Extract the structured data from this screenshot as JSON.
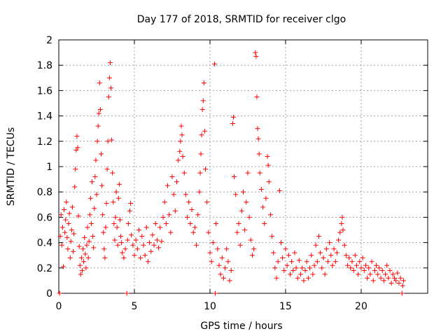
{
  "chart_data": {
    "type": "scatter",
    "title": "Day 177 of 2018, SRMTID for receiver clgo",
    "xlabel": "GPS time / hours",
    "ylabel": "SRMTID / TECUs",
    "xlim": [
      0,
      24.4
    ],
    "ylim": [
      0,
      2
    ],
    "x_ticks": [
      0,
      5,
      10,
      15,
      20
    ],
    "x_tick_labels": [
      "0",
      "5",
      "10",
      "15",
      "20"
    ],
    "y_ticks": [
      0,
      0.2,
      0.4,
      0.6,
      0.8,
      1,
      1.2,
      1.4,
      1.6,
      1.8,
      2
    ],
    "y_tick_labels": [
      "0",
      "0.2",
      "0.4",
      "0.6",
      "0.8",
      "1",
      "1.2",
      "1.4",
      "1.6",
      "1.8",
      "2"
    ],
    "grid": true,
    "marker": "+",
    "marker_color": "#ff0000",
    "series": [
      {
        "name": "SRMTID",
        "points": [
          [
            0.05,
            0.0
          ],
          [
            0.1,
            0.45
          ],
          [
            0.15,
            0.62
          ],
          [
            0.2,
            0.38
          ],
          [
            0.25,
            0.52
          ],
          [
            0.3,
            0.21
          ],
          [
            0.35,
            0.66
          ],
          [
            0.4,
            0.48
          ],
          [
            0.45,
            0.58
          ],
          [
            0.5,
            0.72
          ],
          [
            0.55,
            0.44
          ],
          [
            0.6,
            0.35
          ],
          [
            0.65,
            0.55
          ],
          [
            0.7,
            0.63
          ],
          [
            0.75,
            0.28
          ],
          [
            0.8,
            0.41
          ],
          [
            0.85,
            0.5
          ],
          [
            0.9,
            0.68
          ],
          [
            0.95,
            0.33
          ],
          [
            1.0,
            0.47
          ],
          [
            1.05,
            0.84
          ],
          [
            1.1,
            0.98
          ],
          [
            1.15,
            1.13
          ],
          [
            1.2,
            1.24
          ],
          [
            1.25,
            1.15
          ],
          [
            1.3,
            0.61
          ],
          [
            1.35,
            0.37
          ],
          [
            1.4,
            0.22
          ],
          [
            1.45,
            0.15
          ],
          [
            1.5,
            0.28
          ],
          [
            1.55,
            0.18
          ],
          [
            1.6,
            0.35
          ],
          [
            1.65,
            0.25
          ],
          [
            1.7,
            0.44
          ],
          [
            1.75,
            0.31
          ],
          [
            1.8,
            0.2
          ],
          [
            1.85,
            0.38
          ],
          [
            1.9,
            0.52
          ],
          [
            1.95,
            0.28
          ],
          [
            2.0,
            0.41
          ],
          [
            2.05,
            0.62
          ],
          [
            2.1,
            0.75
          ],
          [
            2.15,
            0.55
          ],
          [
            2.2,
            0.88
          ],
          [
            2.25,
            0.45
          ],
          [
            2.3,
            0.36
          ],
          [
            2.35,
            0.67
          ],
          [
            2.4,
            0.92
          ],
          [
            2.45,
            1.05
          ],
          [
            2.5,
            0.78
          ],
          [
            2.55,
            1.2
          ],
          [
            2.6,
            1.32
          ],
          [
            2.65,
            1.42
          ],
          [
            2.7,
            1.66
          ],
          [
            2.75,
            1.45
          ],
          [
            2.8,
            1.1
          ],
          [
            2.85,
            0.85
          ],
          [
            2.9,
            0.62
          ],
          [
            2.95,
            0.48
          ],
          [
            3.0,
            0.35
          ],
          [
            3.05,
            0.28
          ],
          [
            3.1,
            0.52
          ],
          [
            3.15,
            0.71
          ],
          [
            3.2,
            0.98
          ],
          [
            3.25,
            1.2
          ],
          [
            3.3,
            1.55
          ],
          [
            3.35,
            1.7
          ],
          [
            3.4,
            1.82
          ],
          [
            3.45,
            1.62
          ],
          [
            3.5,
            1.21
          ],
          [
            3.55,
            0.95
          ],
          [
            3.6,
            0.72
          ],
          [
            3.65,
            0.55
          ],
          [
            3.7,
            0.42
          ],
          [
            3.75,
            0.6
          ],
          [
            3.8,
            0.8
          ],
          [
            3.85,
            0.52
          ],
          [
            3.9,
            0.38
          ],
          [
            3.95,
            0.75
          ],
          [
            4.0,
            0.86
          ],
          [
            4.05,
            0.58
          ],
          [
            4.1,
            0.45
          ],
          [
            4.15,
            0.4
          ],
          [
            4.2,
            0.32
          ],
          [
            4.3,
            0.28
          ],
          [
            4.4,
            0.35
          ],
          [
            4.5,
            0.0
          ],
          [
            4.55,
            0.42
          ],
          [
            4.6,
            0.55
          ],
          [
            4.7,
            0.65
          ],
          [
            4.75,
            0.71
          ],
          [
            4.8,
            0.46
          ],
          [
            4.9,
            0.38
          ],
          [
            5.0,
            0.3
          ],
          [
            5.1,
            0.42
          ],
          [
            5.2,
            0.35
          ],
          [
            5.3,
            0.5
          ],
          [
            5.4,
            0.28
          ],
          [
            5.5,
            0.45
          ],
          [
            5.6,
            0.38
          ],
          [
            5.7,
            0.3
          ],
          [
            5.8,
            0.52
          ],
          [
            5.9,
            0.25
          ],
          [
            6.0,
            0.4
          ],
          [
            6.1,
            0.33
          ],
          [
            6.2,
            0.46
          ],
          [
            6.3,
            0.38
          ],
          [
            6.4,
            0.55
          ],
          [
            6.5,
            0.42
          ],
          [
            6.6,
            0.36
          ],
          [
            6.7,
            0.52
          ],
          [
            6.8,
            0.41
          ],
          [
            6.9,
            0.6
          ],
          [
            7.0,
            0.72
          ],
          [
            7.1,
            0.55
          ],
          [
            7.2,
            0.85
          ],
          [
            7.3,
            0.62
          ],
          [
            7.4,
            0.48
          ],
          [
            7.5,
            0.92
          ],
          [
            7.6,
            0.78
          ],
          [
            7.7,
            0.65
          ],
          [
            7.8,
            0.88
          ],
          [
            7.9,
            1.05
          ],
          [
            8.0,
            1.12
          ],
          [
            8.05,
            1.2
          ],
          [
            8.1,
            1.32
          ],
          [
            8.15,
            1.25
          ],
          [
            8.2,
            1.08
          ],
          [
            8.3,
            0.95
          ],
          [
            8.4,
            0.78
          ],
          [
            8.5,
            0.6
          ],
          [
            8.6,
            0.72
          ],
          [
            8.7,
            0.55
          ],
          [
            8.8,
            0.66
          ],
          [
            8.9,
            0.48
          ],
          [
            9.0,
            0.52
          ],
          [
            9.1,
            0.38
          ],
          [
            9.2,
            0.62
          ],
          [
            9.3,
            0.8
          ],
          [
            9.35,
            0.95
          ],
          [
            9.4,
            1.1
          ],
          [
            9.45,
            1.25
          ],
          [
            9.5,
            1.45
          ],
          [
            9.55,
            1.52
          ],
          [
            9.6,
            1.66
          ],
          [
            9.65,
            1.28
          ],
          [
            9.7,
            0.98
          ],
          [
            9.8,
            0.72
          ],
          [
            9.9,
            0.48
          ],
          [
            10.0,
            0.32
          ],
          [
            10.1,
            0.25
          ],
          [
            10.2,
            0.4
          ],
          [
            10.3,
            1.81
          ],
          [
            10.35,
            0.0
          ],
          [
            10.4,
            0.55
          ],
          [
            10.5,
            0.35
          ],
          [
            10.6,
            0.22
          ],
          [
            10.7,
            0.15
          ],
          [
            10.8,
            0.28
          ],
          [
            10.9,
            0.12
          ],
          [
            11.0,
            0.2
          ],
          [
            11.1,
            0.35
          ],
          [
            11.2,
            0.25
          ],
          [
            11.3,
            0.1
          ],
          [
            11.4,
            0.18
          ],
          [
            11.5,
            1.34
          ],
          [
            11.55,
            1.39
          ],
          [
            11.6,
            0.92
          ],
          [
            11.7,
            0.78
          ],
          [
            11.8,
            0.48
          ],
          [
            11.9,
            0.55
          ],
          [
            12.0,
            0.38
          ],
          [
            12.1,
            0.65
          ],
          [
            12.2,
            0.8
          ],
          [
            12.3,
            0.5
          ],
          [
            12.4,
            0.72
          ],
          [
            12.5,
            0.95
          ],
          [
            12.6,
            0.6
          ],
          [
            12.7,
            0.42
          ],
          [
            12.8,
            0.3
          ],
          [
            12.9,
            0.35
          ],
          [
            13.0,
            1.9
          ],
          [
            13.05,
            1.87
          ],
          [
            13.1,
            1.55
          ],
          [
            13.15,
            1.3
          ],
          [
            13.2,
            1.22
          ],
          [
            13.25,
            1.1
          ],
          [
            13.3,
            0.95
          ],
          [
            13.4,
            0.82
          ],
          [
            13.5,
            0.68
          ],
          [
            13.6,
            0.55
          ],
          [
            13.7,
            0.75
          ],
          [
            13.8,
            1.08
          ],
          [
            13.85,
            1.01
          ],
          [
            13.9,
            0.88
          ],
          [
            14.0,
            0.62
          ],
          [
            14.1,
            0.45
          ],
          [
            14.2,
            0.32
          ],
          [
            14.3,
            0.2
          ],
          [
            14.4,
            0.12
          ],
          [
            14.5,
            0.25
          ],
          [
            14.6,
            0.81
          ],
          [
            14.7,
            0.4
          ],
          [
            14.8,
            0.28
          ],
          [
            14.9,
            0.18
          ],
          [
            15.0,
            0.35
          ],
          [
            15.1,
            0.22
          ],
          [
            15.2,
            0.3
          ],
          [
            15.3,
            0.15
          ],
          [
            15.4,
            0.25
          ],
          [
            15.5,
            0.18
          ],
          [
            15.6,
            0.32
          ],
          [
            15.7,
            0.2
          ],
          [
            15.8,
            0.12
          ],
          [
            15.9,
            0.26
          ],
          [
            16.0,
            0.15
          ],
          [
            16.1,
            0.2
          ],
          [
            16.2,
            0.1
          ],
          [
            16.3,
            0.18
          ],
          [
            16.4,
            0.25
          ],
          [
            16.5,
            0.12
          ],
          [
            16.6,
            0.2
          ],
          [
            16.7,
            0.3
          ],
          [
            16.8,
            0.15
          ],
          [
            16.9,
            0.22
          ],
          [
            17.0,
            0.38
          ],
          [
            17.1,
            0.25
          ],
          [
            17.2,
            0.45
          ],
          [
            17.3,
            0.32
          ],
          [
            17.4,
            0.2
          ],
          [
            17.5,
            0.28
          ],
          [
            17.6,
            0.15
          ],
          [
            17.7,
            0.35
          ],
          [
            17.8,
            0.25
          ],
          [
            17.9,
            0.4
          ],
          [
            18.0,
            0.3
          ],
          [
            18.1,
            0.22
          ],
          [
            18.2,
            0.35
          ],
          [
            18.3,
            0.25
          ],
          [
            18.4,
            0.32
          ],
          [
            18.5,
            0.42
          ],
          [
            18.6,
            0.48
          ],
          [
            18.7,
            0.55
          ],
          [
            18.75,
            0.6
          ],
          [
            18.8,
            0.5
          ],
          [
            18.9,
            0.38
          ],
          [
            19.0,
            0.3
          ],
          [
            19.1,
            0.22
          ],
          [
            19.2,
            0.28
          ],
          [
            19.3,
            0.2
          ],
          [
            19.4,
            0.25
          ],
          [
            19.5,
            0.18
          ],
          [
            19.6,
            0.3
          ],
          [
            19.7,
            0.22
          ],
          [
            19.8,
            0.15
          ],
          [
            19.9,
            0.25
          ],
          [
            20.0,
            0.2
          ],
          [
            20.1,
            0.28
          ],
          [
            20.2,
            0.18
          ],
          [
            20.3,
            0.22
          ],
          [
            20.4,
            0.12
          ],
          [
            20.5,
            0.2
          ],
          [
            20.6,
            0.15
          ],
          [
            20.7,
            0.25
          ],
          [
            20.8,
            0.1
          ],
          [
            20.9,
            0.18
          ],
          [
            21.0,
            0.22
          ],
          [
            21.1,
            0.15
          ],
          [
            21.2,
            0.2
          ],
          [
            21.3,
            0.12
          ],
          [
            21.4,
            0.18
          ],
          [
            21.5,
            0.1
          ],
          [
            21.6,
            0.15
          ],
          [
            21.7,
            0.22
          ],
          [
            21.8,
            0.12
          ],
          [
            21.9,
            0.18
          ],
          [
            22.0,
            0.08
          ],
          [
            22.1,
            0.15
          ],
          [
            22.2,
            0.12
          ],
          [
            22.3,
            0.1
          ],
          [
            22.4,
            0.16
          ],
          [
            22.5,
            0.08
          ],
          [
            22.6,
            0.12
          ],
          [
            22.7,
            0.0
          ],
          [
            22.75,
            0.06
          ],
          [
            22.8,
            0.1
          ]
        ]
      }
    ]
  }
}
